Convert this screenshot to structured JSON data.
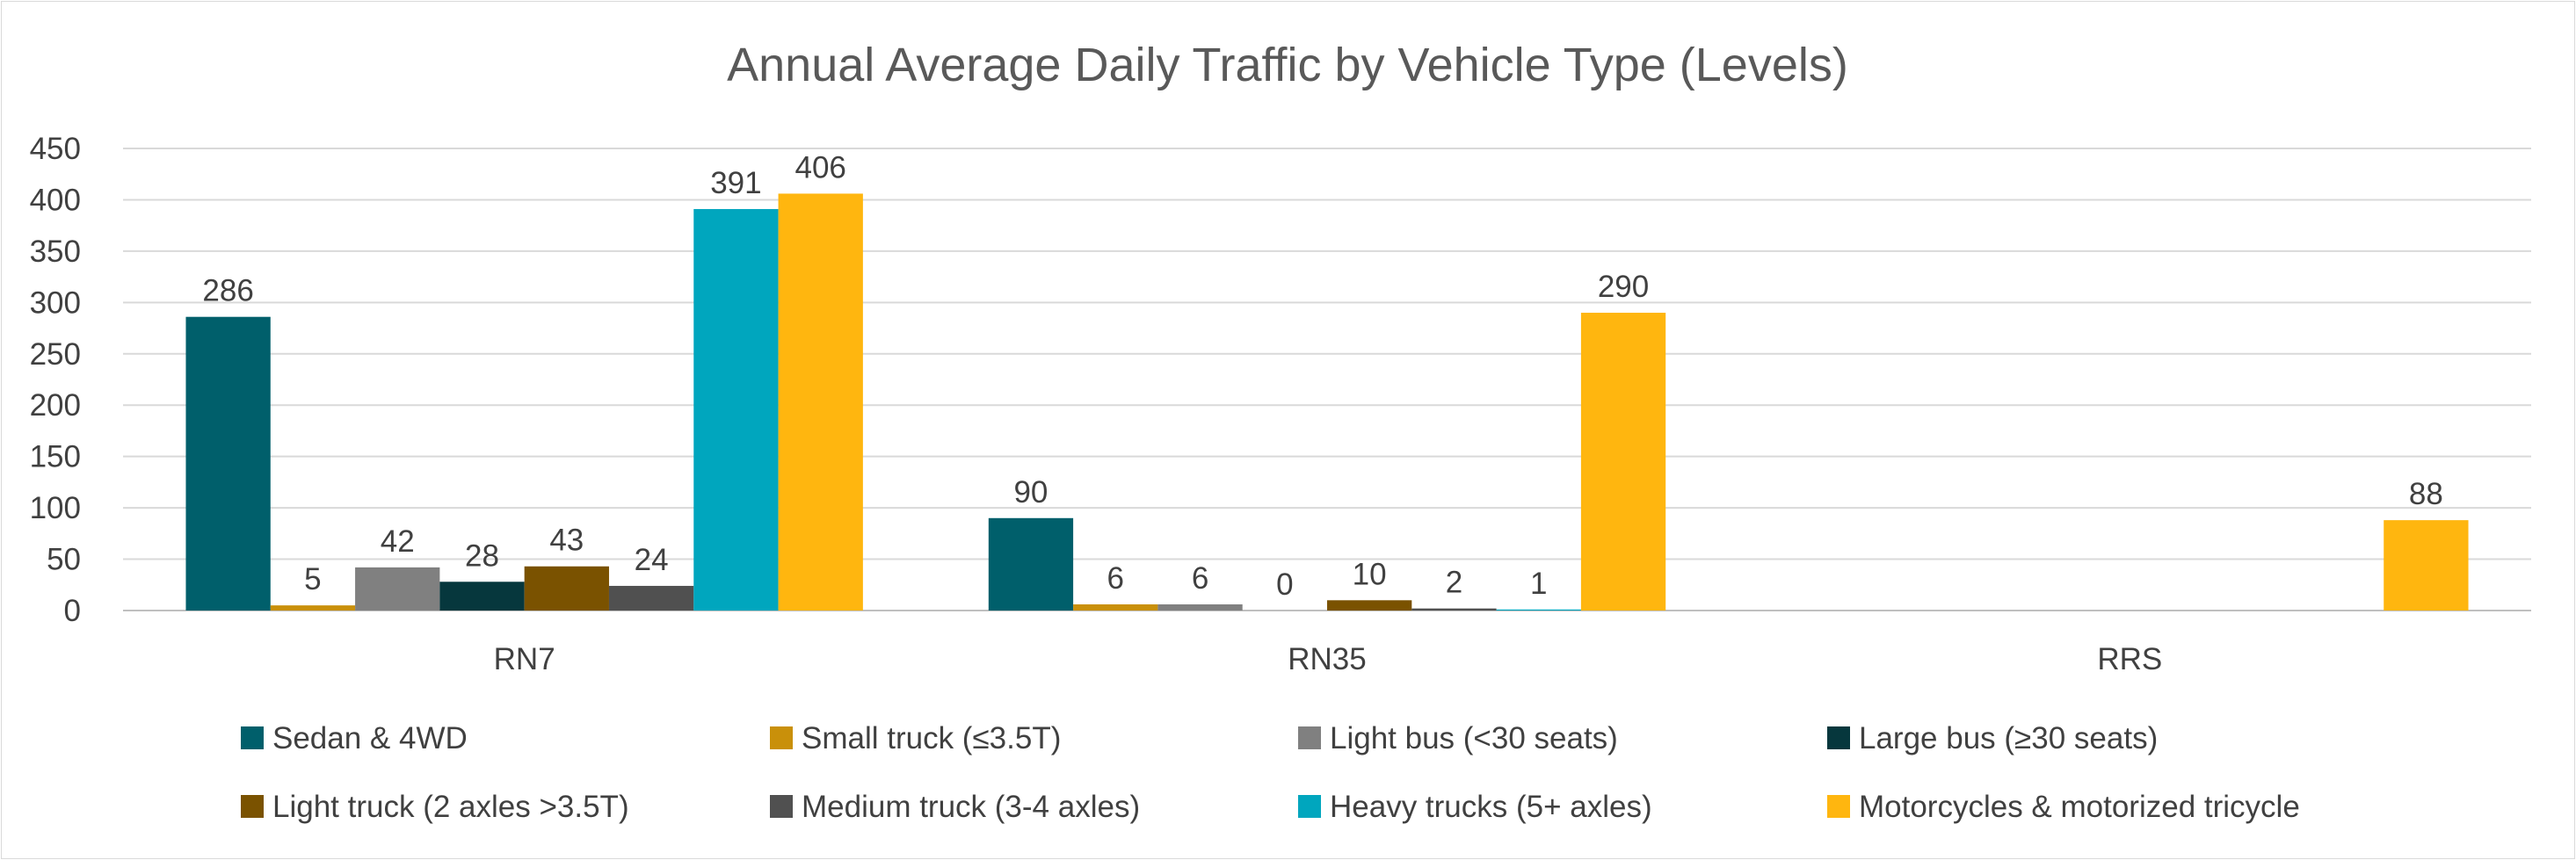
{
  "chart_data": {
    "type": "bar",
    "title": "Annual Average Daily Traffic by Vehicle Type (Levels)",
    "xlabel": "",
    "ylabel": "",
    "ylim": [
      0,
      450
    ],
    "yticks": [
      "0",
      "50",
      "100",
      "150",
      "200",
      "250",
      "300",
      "350",
      "400",
      "450"
    ],
    "grid": true,
    "legend_position": "bottom",
    "categories": [
      "RN7",
      "RN35",
      "RRS"
    ],
    "series": [
      {
        "name": "Sedan & 4WD",
        "color": "#005F6B",
        "values": [
          286,
          90,
          null
        ],
        "labels": [
          "286",
          "90",
          ""
        ]
      },
      {
        "name": "Small truck (≤3.5T)",
        "color": "#C9900A",
        "values": [
          5,
          6,
          null
        ],
        "labels": [
          "5",
          "6",
          ""
        ]
      },
      {
        "name": "Light bus (<30 seats)",
        "color": "#808080",
        "values": [
          42,
          6,
          null
        ],
        "labels": [
          "42",
          "6",
          ""
        ]
      },
      {
        "name": "Large bus (≥30 seats)",
        "color": "#06373D",
        "values": [
          28,
          0,
          null
        ],
        "labels": [
          "28",
          "0",
          ""
        ]
      },
      {
        "name": "Light truck (2 axles >3.5T)",
        "color": "#7A5200",
        "values": [
          43,
          10,
          null
        ],
        "labels": [
          "43",
          "10",
          ""
        ]
      },
      {
        "name": "Medium truck (3-4 axles)",
        "color": "#505050",
        "values": [
          24,
          2,
          null
        ],
        "labels": [
          "24",
          "2",
          ""
        ]
      },
      {
        "name": "Heavy trucks (5+ axles)",
        "color": "#00A6BE",
        "values": [
          391,
          1,
          null
        ],
        "labels": [
          "391",
          "1",
          ""
        ]
      },
      {
        "name": "Motorcycles & motorized tricycle",
        "color": "#FFB60F",
        "values": [
          406,
          290,
          88
        ],
        "labels": [
          "406",
          "290",
          "88"
        ]
      }
    ]
  }
}
